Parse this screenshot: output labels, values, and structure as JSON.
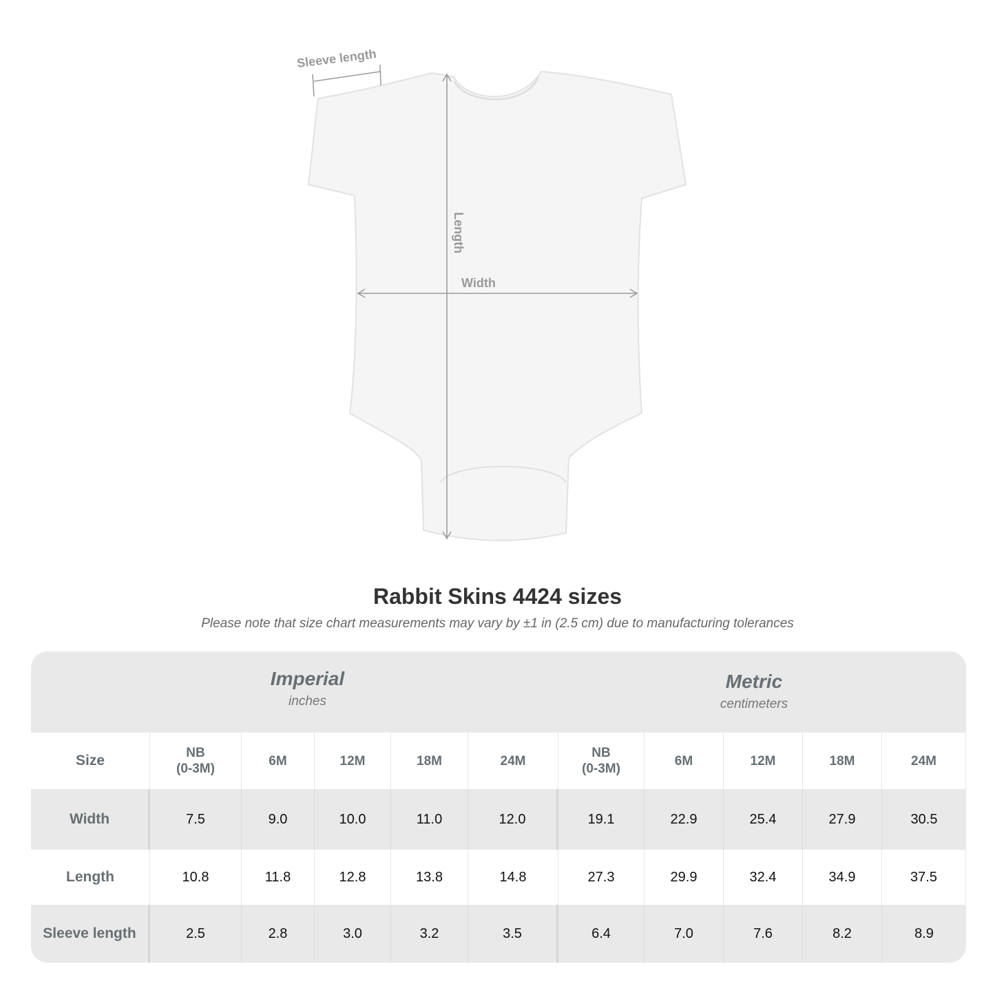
{
  "diagram": {
    "sleeve_label": "Sleeve length",
    "length_label": "Length",
    "width_label": "Width"
  },
  "title": "Rabbit Skins 4424 sizes",
  "note": "Please note that size chart measurements may vary by ±1 in (2.5 cm) due to manufacturing tolerances",
  "table": {
    "imperial": {
      "title": "Imperial",
      "unit": "inches"
    },
    "metric": {
      "title": "Metric",
      "unit": "centimeters"
    },
    "size_label": "Size",
    "sizes": [
      "NB\n(0-3M)",
      "6M",
      "12M",
      "18M",
      "24M",
      "NB\n(0-3M)",
      "6M",
      "12M",
      "18M",
      "24M"
    ],
    "rows": [
      {
        "label": "Width",
        "values": [
          "7.5",
          "9.0",
          "10.0",
          "11.0",
          "12.0",
          "19.1",
          "22.9",
          "25.4",
          "27.9",
          "30.5"
        ]
      },
      {
        "label": "Length",
        "values": [
          "10.8",
          "11.8",
          "12.8",
          "13.8",
          "14.8",
          "27.3",
          "29.9",
          "32.4",
          "34.9",
          "37.5"
        ]
      },
      {
        "label": "Sleeve length",
        "values": [
          "2.5",
          "2.8",
          "3.0",
          "3.2",
          "3.5",
          "6.4",
          "7.0",
          "7.6",
          "8.2",
          "8.9"
        ]
      }
    ]
  }
}
